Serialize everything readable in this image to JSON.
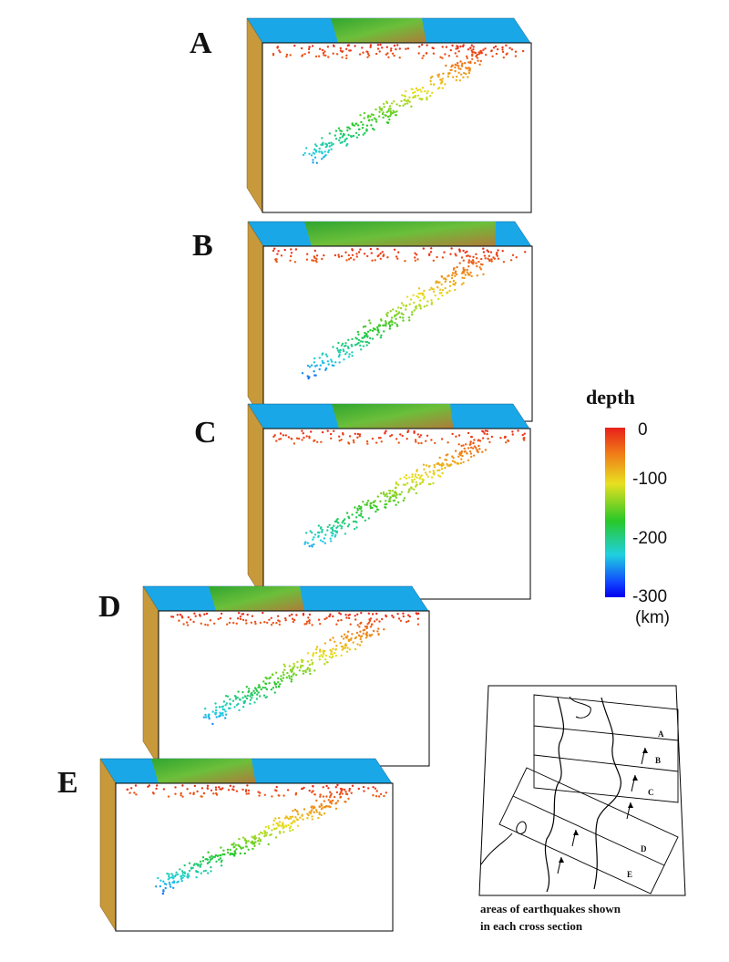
{
  "panels": [
    {
      "letter": "A"
    },
    {
      "letter": "B"
    },
    {
      "letter": "C"
    },
    {
      "letter": "D"
    },
    {
      "letter": "E"
    }
  ],
  "legend": {
    "title": "depth",
    "ticks": [
      "0",
      "-100",
      "-200",
      "-300"
    ],
    "unit": "(km)",
    "colors": [
      "#e8201a",
      "#f08a18",
      "#e8e020",
      "#28c828",
      "#20d0e0",
      "#1040ff",
      "#0000ee"
    ]
  },
  "map": {
    "section_labels": [
      "A",
      "B",
      "C",
      "D",
      "E"
    ],
    "caption_line1": "areas of earthquakes shown",
    "caption_line2": "in  each cross section"
  },
  "colors": {
    "sea": "#1aa7e8",
    "land": "#3fae3a",
    "side_face": "#c8993a",
    "section_face": "#ffffff"
  }
}
